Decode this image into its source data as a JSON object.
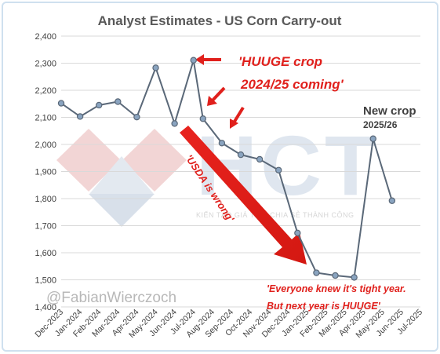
{
  "watermark": {
    "handle": "@FabianWierczoch",
    "brand": "HCT",
    "tagline": "KIẾN TẠO GIÁ TRỊ - CHIA SẺ THÀNH CÔNG"
  },
  "annotations": {
    "huuge_line1": "'HUUGE crop",
    "huuge_line2": "2024/25 coming'",
    "usda": "'USDA is wrong'",
    "new_crop_line1": "New crop",
    "new_crop_line2": "2025/26",
    "everyone_line1": "'Everyone knew it's tight year.",
    "everyone_line2": "But next year is HUUGE'"
  },
  "colors": {
    "line": "#5a6878",
    "marker_fill": "#8aa4c0",
    "annotation_red": "#e0201c",
    "grid": "#d9d9d9"
  },
  "chart_data": {
    "type": "line",
    "title": "Analyst Estimates - US Corn Carry-out",
    "xlabel": "",
    "ylabel": "",
    "ylim": [
      1400,
      2400
    ],
    "yticks": [
      "1,400",
      "1,500",
      "1,600",
      "1,700",
      "1,800",
      "1,900",
      "2,000",
      "2,100",
      "2,200",
      "2,300",
      "2,400"
    ],
    "categories": [
      "Dec-2023",
      "Jan-2024",
      "Feb-2024",
      "Mar-2024",
      "Apr-2024",
      "May-2024",
      "Jun-2024",
      "Jul-2024",
      "Aug-2024",
      "Sep-2024",
      "Oct-2024",
      "Nov-2024",
      "Dec-2024",
      "Jan-2025",
      "Feb-2025",
      "Mar-2025",
      "Apr-2025",
      "May-2025",
      "Jun-2025",
      "Jul-2025"
    ],
    "points": [
      {
        "x": 0,
        "y": 2152
      },
      {
        "x": 1,
        "y": 2103
      },
      {
        "x": 2,
        "y": 2145
      },
      {
        "x": 3,
        "y": 2158
      },
      {
        "x": 4,
        "y": 2101
      },
      {
        "x": 5,
        "y": 2283
      },
      {
        "x": 6,
        "y": 2077
      },
      {
        "x": 7,
        "y": 2311
      },
      {
        "x": 7.5,
        "y": 2095
      },
      {
        "x": 8.5,
        "y": 2005
      },
      {
        "x": 9.5,
        "y": 1962
      },
      {
        "x": 10.5,
        "y": 1945
      },
      {
        "x": 11.5,
        "y": 1905
      },
      {
        "x": 12.5,
        "y": 1673
      },
      {
        "x": 13.5,
        "y": 1526
      },
      {
        "x": 14.5,
        "y": 1516
      },
      {
        "x": 15.5,
        "y": 1509
      },
      {
        "x": 16.5,
        "y": 2021
      },
      {
        "x": 17.5,
        "y": 1792
      }
    ],
    "grid": true,
    "legend": "none"
  }
}
